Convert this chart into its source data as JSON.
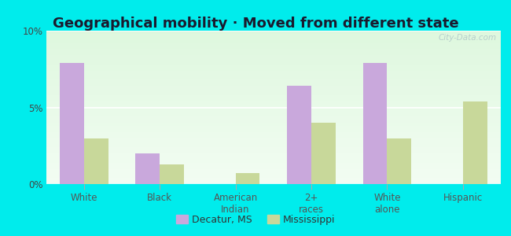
{
  "title": "Geographical mobility · Moved from different state",
  "categories": [
    "White",
    "Black",
    "American\nIndian",
    "2+\nraces",
    "White\nalone",
    "Hispanic"
  ],
  "decatur_values": [
    7.9,
    2.0,
    0.0,
    6.4,
    7.9,
    0.0
  ],
  "mississippi_values": [
    3.0,
    1.3,
    0.7,
    4.0,
    3.0,
    5.4
  ],
  "decatur_color": "#c9a8dc",
  "mississippi_color": "#c8d89a",
  "background_outer": "#00ECEC",
  "background_chart_top": "#f8fff8",
  "background_chart_bottom": "#d8f0d8",
  "ylim": [
    0,
    10
  ],
  "yticks": [
    0,
    5,
    10
  ],
  "ytick_labels": [
    "0%",
    "5%",
    "10%"
  ],
  "bar_width": 0.32,
  "legend_label_decatur": "Decatur, MS",
  "legend_label_mississippi": "Mississippi",
  "title_fontsize": 13,
  "tick_fontsize": 8.5,
  "legend_fontsize": 9,
  "watermark": "City-Data.com"
}
